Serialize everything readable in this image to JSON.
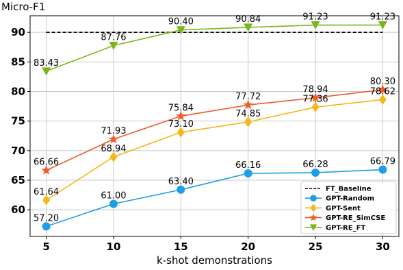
{
  "chart_data": {
    "type": "line",
    "xlabel": "k-shot demonstrations",
    "ylabel": "Micro-F1",
    "x": [
      5,
      10,
      15,
      20,
      25,
      30
    ],
    "xlim": [
      3.8,
      31.2
    ],
    "ylim": [
      55.5,
      92.8
    ],
    "yticks": [
      60,
      65,
      70,
      75,
      80,
      85,
      90
    ],
    "grid": true,
    "legend_position": "bottom-right",
    "series": [
      {
        "name": "FT_Baseline",
        "style": "dashed",
        "color": "#000000",
        "marker": "none",
        "values": [
          90,
          90,
          90,
          90,
          90,
          90
        ],
        "labels": [
          "",
          "",
          "",
          "",
          "",
          ""
        ]
      },
      {
        "name": "GPT-Random",
        "color": "#1f9de8",
        "marker": "circle",
        "values": [
          57.2,
          61.0,
          63.4,
          66.16,
          66.28,
          66.79
        ],
        "labels": [
          "57.20",
          "61.00",
          "63.40",
          "66.16",
          "66.28",
          "66.79"
        ]
      },
      {
        "name": "GPT-Sent",
        "color": "#f4b61a",
        "marker": "diamond",
        "values": [
          61.64,
          68.94,
          73.1,
          74.85,
          77.36,
          78.62
        ],
        "labels": [
          "61.64",
          "68.94",
          "73.10",
          "74.85",
          "77.36",
          "78.62"
        ]
      },
      {
        "name": "GPT-RE_SimCSE",
        "color": "#ef5b29",
        "marker": "star",
        "values": [
          66.66,
          71.93,
          75.84,
          77.72,
          78.94,
          80.3
        ],
        "labels": [
          "66.66",
          "71.93",
          "75.84",
          "77.72",
          "78.94",
          "80.30"
        ]
      },
      {
        "name": "GPT-RE_FT",
        "color": "#7ab51d",
        "marker": "triangle-down",
        "values": [
          83.43,
          87.76,
          90.4,
          90.84,
          91.23,
          91.23
        ],
        "labels": [
          "83.43",
          "87.76",
          "90.40",
          "90.84",
          "91.23",
          "91.23"
        ]
      }
    ]
  }
}
